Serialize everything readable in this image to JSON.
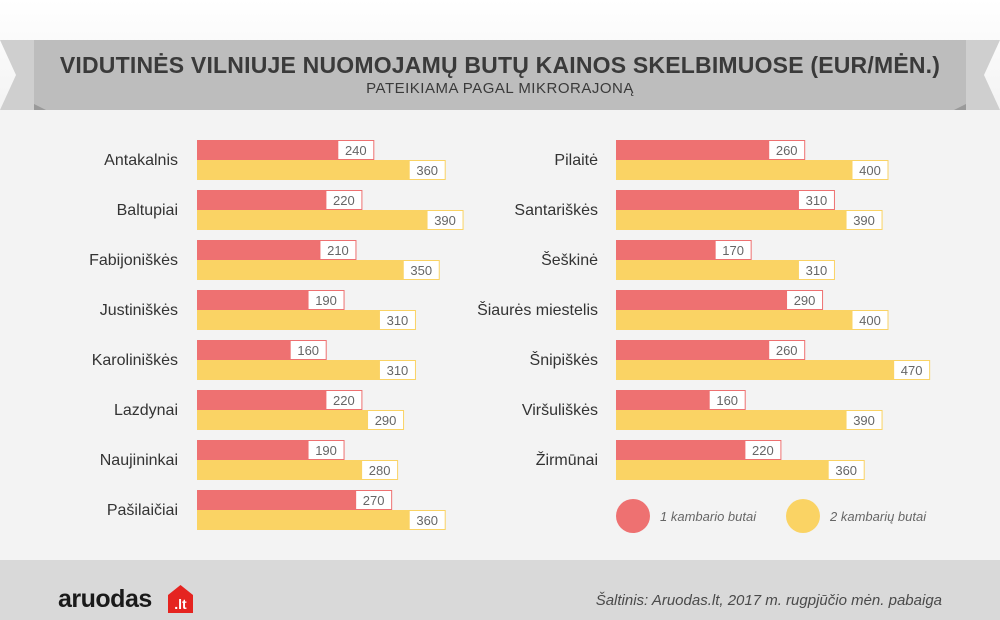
{
  "header": {
    "title": "VIDUTINĖS VILNIUJE NUOMOJAMŲ BUTŲ KAINOS SKELBIMUOSE (EUR/MĖN.)",
    "subtitle": "PATEIKIAMA PAGAL MIKRORAJONĄ"
  },
  "chart_data": {
    "type": "bar",
    "orientation": "horizontal",
    "title": "VIDUTINĖS VILNIUJE NUOMOJAMŲ BUTŲ KAINOS SKELBIMUOSE (EUR/MĖN.)",
    "subtitle": "PATEIKIAMA PAGAL MIKRORAJONĄ",
    "xlim": [
      0,
      500
    ],
    "grid": false,
    "legend": "bottom-right",
    "series_names": [
      "1 kambario butai",
      "2 kambarių butai"
    ],
    "series_colors": [
      "#ee7171",
      "#fad364"
    ],
    "panels": [
      {
        "categories": [
          "Antakalnis",
          "Baltupiai",
          "Fabijoniškės",
          "Justiniškės",
          "Karoliniškės",
          "Lazdynai",
          "Naujininkai",
          "Pašilaičiai"
        ],
        "series": [
          {
            "name": "1 kambario butai",
            "values": [
              240,
              220,
              210,
              190,
              160,
              220,
              190,
              270
            ]
          },
          {
            "name": "2 kambarių butai",
            "values": [
              360,
              390,
              350,
              310,
              310,
              290,
              280,
              360
            ]
          }
        ]
      },
      {
        "categories": [
          "Pilaitė",
          "Santariškės",
          "Šeškinė",
          "Šiaurės miestelis",
          "Šnipiškės",
          "Viršuliškės",
          "Žirmūnai"
        ],
        "series": [
          {
            "name": "1 kambario butai",
            "values": [
              260,
              310,
              170,
              290,
              260,
              160,
              220
            ]
          },
          {
            "name": "2 kambarių butai",
            "values": [
              400,
              390,
              310,
              400,
              470,
              390,
              360
            ]
          }
        ]
      }
    ]
  },
  "legend": {
    "items": [
      {
        "label": "1 kambario butai",
        "color": "#ee7171"
      },
      {
        "label": "2 kambarių butai",
        "color": "#fad364"
      }
    ]
  },
  "footer": {
    "logo_text": "aruodas",
    "logo_suffix": ".lt",
    "source": "Šaltinis: Aruodas.lt, 2017 m. rugpjūčio mėn. pabaiga"
  }
}
